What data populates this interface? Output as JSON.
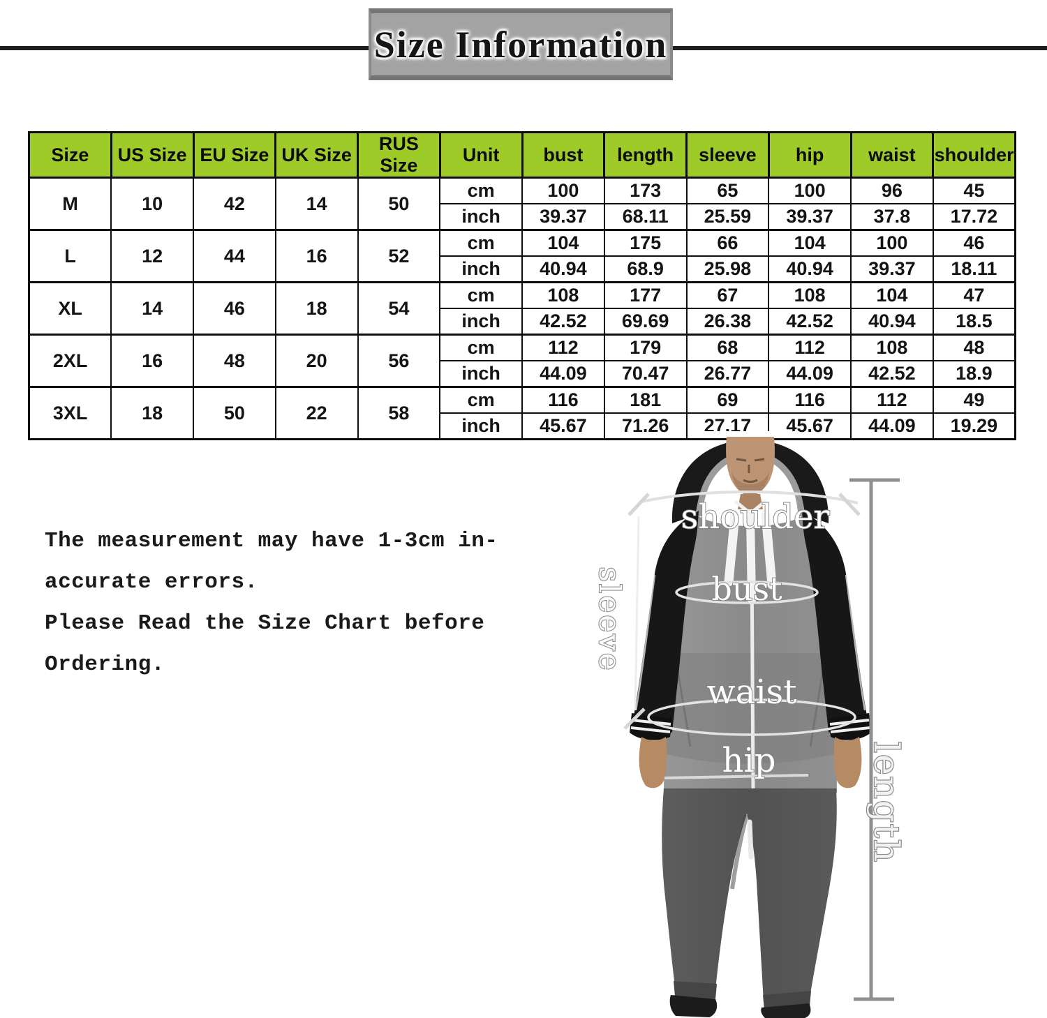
{
  "banner": {
    "title": "Size Information"
  },
  "table": {
    "headers": [
      "Size",
      "US Size",
      "EU Size",
      "UK Size",
      "RUS Size",
      "Unit",
      "bust",
      "length",
      "sleeve",
      "hip",
      "waist",
      "shoulder"
    ],
    "unit_labels": [
      "cm",
      "inch"
    ],
    "rows": [
      {
        "size": "M",
        "us": "10",
        "eu": "42",
        "uk": "14",
        "rus": "50",
        "cm": [
          "100",
          "173",
          "65",
          "100",
          "96",
          "45"
        ],
        "inch": [
          "39.37",
          "68.11",
          "25.59",
          "39.37",
          "37.8",
          "17.72"
        ]
      },
      {
        "size": "L",
        "us": "12",
        "eu": "44",
        "uk": "16",
        "rus": "52",
        "cm": [
          "104",
          "175",
          "66",
          "104",
          "100",
          "46"
        ],
        "inch": [
          "40.94",
          "68.9",
          "25.98",
          "40.94",
          "39.37",
          "18.11"
        ]
      },
      {
        "size": "XL",
        "us": "14",
        "eu": "46",
        "uk": "18",
        "rus": "54",
        "cm": [
          "108",
          "177",
          "67",
          "108",
          "104",
          "47"
        ],
        "inch": [
          "42.52",
          "69.69",
          "26.38",
          "42.52",
          "40.94",
          "18.5"
        ]
      },
      {
        "size": "2XL",
        "us": "16",
        "eu": "48",
        "uk": "20",
        "rus": "56",
        "cm": [
          "112",
          "179",
          "68",
          "112",
          "108",
          "48"
        ],
        "inch": [
          "44.09",
          "70.47",
          "26.77",
          "44.09",
          "42.52",
          "18.9"
        ]
      },
      {
        "size": "3XL",
        "us": "18",
        "eu": "50",
        "uk": "22",
        "rus": "58",
        "cm": [
          "116",
          "181",
          "69",
          "116",
          "112",
          "49"
        ],
        "inch": [
          "45.67",
          "71.26",
          "27.17",
          "45.67",
          "44.09",
          "19.29"
        ]
      }
    ]
  },
  "note": {
    "lines": [
      "The measurement may have 1-3cm in-",
      "accurate errors.",
      "Please Read the Size Chart before",
      "Ordering."
    ]
  },
  "figure": {
    "labels": {
      "shoulder": "shoulder",
      "bust": "bust",
      "sleeve": "sleeve",
      "waist": "waist",
      "hip": "hip",
      "length": "length"
    }
  },
  "colors": {
    "header_green": "#9ecb28",
    "banner_gray": "#a3a3a3",
    "line_black": "#1e1e1e",
    "hoodie_gray": "#8e8e8e",
    "sleeve_black": "#171717",
    "pants_gray": "#565656"
  }
}
